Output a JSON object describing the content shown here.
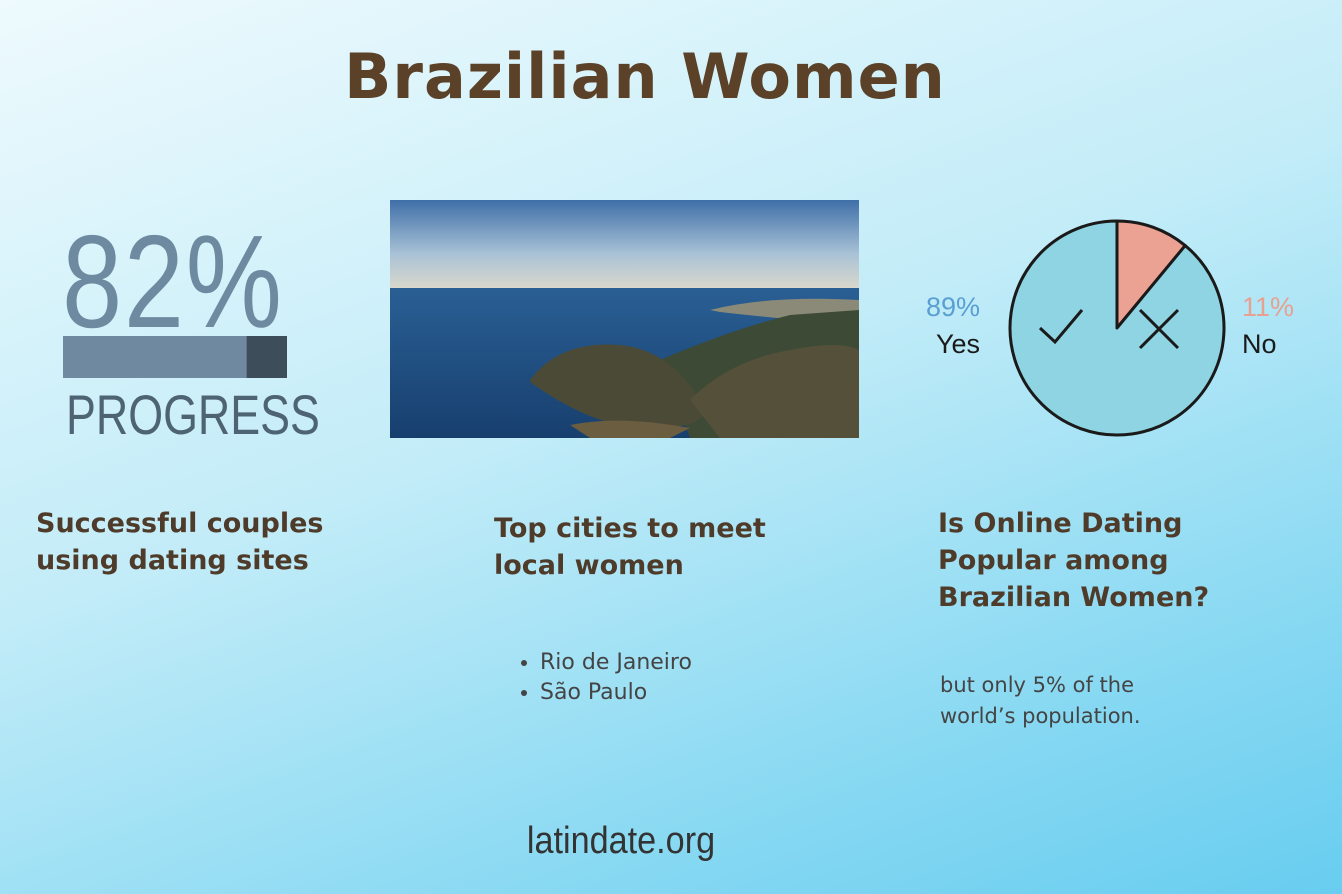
{
  "title": "Brazilian Women",
  "progress": {
    "label": "82%",
    "value": 82,
    "xlim": [
      0,
      100
    ],
    "caption": "PROGRESS",
    "heading": "Successful couples using dating sites"
  },
  "cities": {
    "heading": "Top cities to meet local women",
    "items": [
      "Rio de Janeiro",
      "São Paulo"
    ]
  },
  "poll": {
    "type": "pie",
    "heading": "Is Online Dating Popular among Brazilian Women?",
    "series": [
      {
        "name": "Yes",
        "value": 89,
        "label": "89%",
        "color": "#8fd4e2",
        "label_color": "#5a9fd2"
      },
      {
        "name": "No",
        "value": 11,
        "label": "11%",
        "color": "#eba293",
        "label_color": "#e8a090"
      }
    ],
    "note": "but only 5% of the world’s population."
  },
  "footer": "latindate.org"
}
